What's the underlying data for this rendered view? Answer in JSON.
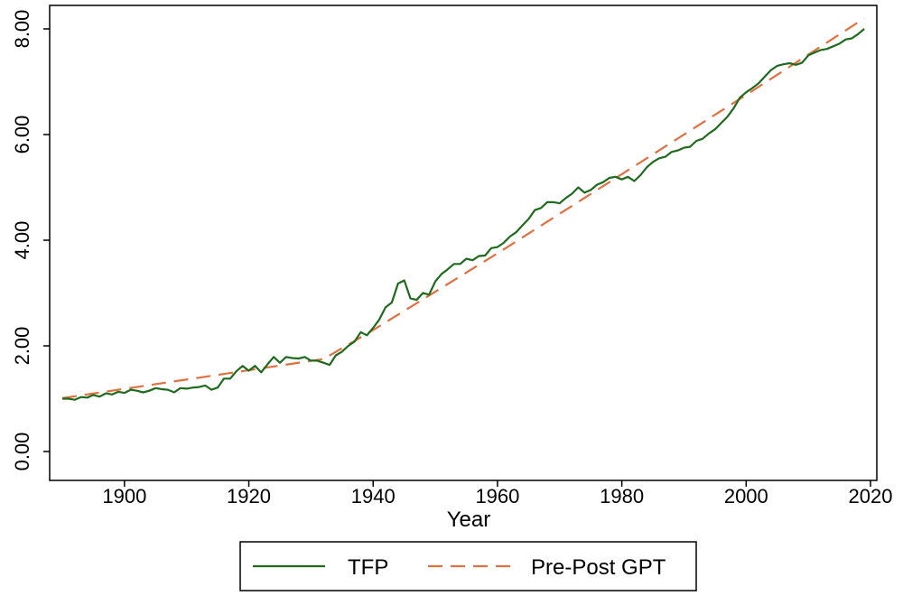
{
  "chart_data": {
    "type": "line",
    "title": "",
    "xlabel": "Year",
    "ylabel": "",
    "xlim": [
      1890,
      2020
    ],
    "ylim": [
      0,
      8.2
    ],
    "xticks": [
      1900,
      1920,
      1940,
      1960,
      1980,
      2000,
      2020
    ],
    "yticks": [
      0,
      2,
      4,
      6,
      8
    ],
    "ytick_labels": [
      "0.00",
      "2.00",
      "4.00",
      "6.00",
      "8.00"
    ],
    "grid": false,
    "legend_position": "bottom-center",
    "legend": [
      "TFP",
      "Pre-Post GPT"
    ],
    "series": [
      {
        "name": "TFP",
        "style": "solid",
        "color": "#1e6b1e",
        "x": [
          1890,
          1891,
          1892,
          1893,
          1894,
          1895,
          1896,
          1897,
          1898,
          1899,
          1900,
          1901,
          1902,
          1903,
          1904,
          1905,
          1906,
          1907,
          1908,
          1909,
          1910,
          1911,
          1912,
          1913,
          1914,
          1915,
          1916,
          1917,
          1918,
          1919,
          1920,
          1921,
          1922,
          1923,
          1924,
          1925,
          1926,
          1927,
          1928,
          1929,
          1930,
          1931,
          1932,
          1933,
          1934,
          1935,
          1936,
          1937,
          1938,
          1939,
          1940,
          1941,
          1942,
          1943,
          1944,
          1945,
          1946,
          1947,
          1948,
          1949,
          1950,
          1951,
          1952,
          1953,
          1954,
          1955,
          1956,
          1957,
          1958,
          1959,
          1960,
          1961,
          1962,
          1963,
          1964,
          1965,
          1966,
          1967,
          1968,
          1969,
          1970,
          1971,
          1972,
          1973,
          1974,
          1975,
          1976,
          1977,
          1978,
          1979,
          1980,
          1981,
          1982,
          1983,
          1984,
          1985,
          1986,
          1987,
          1988,
          1989,
          1990,
          1991,
          1992,
          1993,
          1994,
          1995,
          1996,
          1997,
          1998,
          1999,
          2000,
          2001,
          2002,
          2003,
          2004,
          2005,
          2006,
          2007,
          2008,
          2009,
          2010,
          2011,
          2012,
          2013,
          2014,
          2015,
          2016,
          2017,
          2018,
          2019
        ],
        "y": [
          1.0,
          1.0,
          0.98,
          1.03,
          1.02,
          1.07,
          1.04,
          1.1,
          1.08,
          1.13,
          1.11,
          1.17,
          1.15,
          1.12,
          1.15,
          1.2,
          1.18,
          1.17,
          1.12,
          1.2,
          1.19,
          1.21,
          1.22,
          1.25,
          1.17,
          1.21,
          1.38,
          1.38,
          1.52,
          1.62,
          1.53,
          1.62,
          1.5,
          1.65,
          1.79,
          1.68,
          1.79,
          1.77,
          1.76,
          1.79,
          1.72,
          1.72,
          1.68,
          1.64,
          1.82,
          1.89,
          2.0,
          2.08,
          2.26,
          2.2,
          2.34,
          2.5,
          2.73,
          2.82,
          3.18,
          3.24,
          2.9,
          2.87,
          3.0,
          2.97,
          3.22,
          3.36,
          3.45,
          3.55,
          3.55,
          3.65,
          3.62,
          3.7,
          3.71,
          3.85,
          3.87,
          3.95,
          4.07,
          4.15,
          4.28,
          4.4,
          4.57,
          4.61,
          4.72,
          4.72,
          4.7,
          4.8,
          4.88,
          5.0,
          4.9,
          4.95,
          5.05,
          5.1,
          5.18,
          5.2,
          5.15,
          5.2,
          5.12,
          5.23,
          5.38,
          5.48,
          5.55,
          5.58,
          5.67,
          5.7,
          5.75,
          5.77,
          5.88,
          5.92,
          6.02,
          6.1,
          6.22,
          6.34,
          6.5,
          6.7,
          6.8,
          6.88,
          6.97,
          7.1,
          7.22,
          7.3,
          7.33,
          7.35,
          7.32,
          7.36,
          7.5,
          7.55,
          7.6,
          7.62,
          7.67,
          7.72,
          7.8,
          7.82,
          7.9,
          8.0
        ]
      },
      {
        "name": "Pre-Post GPT",
        "style": "dashed",
        "color": "#e07040",
        "x": [
          1890,
          1932,
          1940,
          1960,
          1980,
          2000,
          2019
        ],
        "y": [
          1.01,
          1.75,
          2.3,
          3.75,
          5.25,
          6.75,
          8.2
        ]
      }
    ]
  }
}
